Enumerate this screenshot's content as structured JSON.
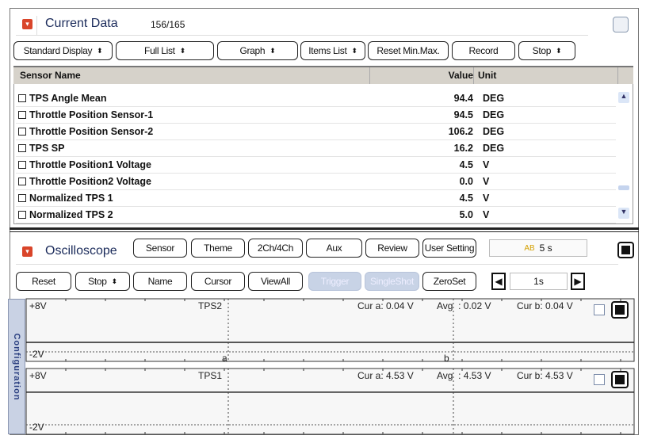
{
  "current_data": {
    "title": "Current Data",
    "count": "156/165",
    "toolbar": [
      {
        "label": "Standard Display",
        "spin": true
      },
      {
        "label": "Full List",
        "spin": true
      },
      {
        "label": "Graph",
        "spin": true
      },
      {
        "label": "Items List",
        "spin": true
      },
      {
        "label": "Reset Min.Max.",
        "spin": false
      },
      {
        "label": "Record",
        "spin": false
      },
      {
        "label": "Stop",
        "spin": true
      }
    ],
    "columns": {
      "name": "Sensor Name",
      "value": "Value",
      "unit": "Unit"
    },
    "rows": [
      {
        "name": "TPS Angle Mean",
        "value": "94.4",
        "unit": "DEG"
      },
      {
        "name": "Throttle Position Sensor-1",
        "value": "94.5",
        "unit": "DEG"
      },
      {
        "name": "Throttle Position Sensor-2",
        "value": "106.2",
        "unit": "DEG"
      },
      {
        "name": "TPS SP",
        "value": "16.2",
        "unit": "DEG"
      },
      {
        "name": "Throttle Position1 Voltage",
        "value": "4.5",
        "unit": "V"
      },
      {
        "name": "Throttle Position2 Voltage",
        "value": "0.0",
        "unit": "V"
      },
      {
        "name": "Normalized TPS 1",
        "value": "4.5",
        "unit": "V"
      },
      {
        "name": "Normalized TPS 2",
        "value": "5.0",
        "unit": "V"
      }
    ]
  },
  "oscilloscope": {
    "title": "Oscilloscope",
    "toolbar1": [
      "Sensor",
      "Theme",
      "2Ch/4Ch",
      "Aux",
      "Review",
      "User Setting"
    ],
    "record_time": "5 s",
    "toolbar2": [
      "Reset",
      "Stop",
      "Name",
      "Cursor",
      "ViewAll",
      "Trigger",
      "SingleShot",
      "ZeroSet"
    ],
    "time_div": "1s",
    "config_tab": "Configuration",
    "channels": [
      {
        "name": "TPS2",
        "top": "+8V",
        "bottom": "-2V",
        "cur_a": "Cur a: 0.04 V",
        "avg": "Avg  : 0.02 V",
        "cur_b": "Cur b: 0.04 V",
        "level": 0.04
      },
      {
        "name": "TPS1",
        "top": "+8V",
        "bottom": "-2V",
        "cur_a": "Cur a: 4.53 V",
        "avg": "Avg  : 4.53 V",
        "cur_b": "Cur b: 4.53 V",
        "level": 4.53
      }
    ],
    "cursor_a": "a",
    "cursor_b": "b"
  }
}
